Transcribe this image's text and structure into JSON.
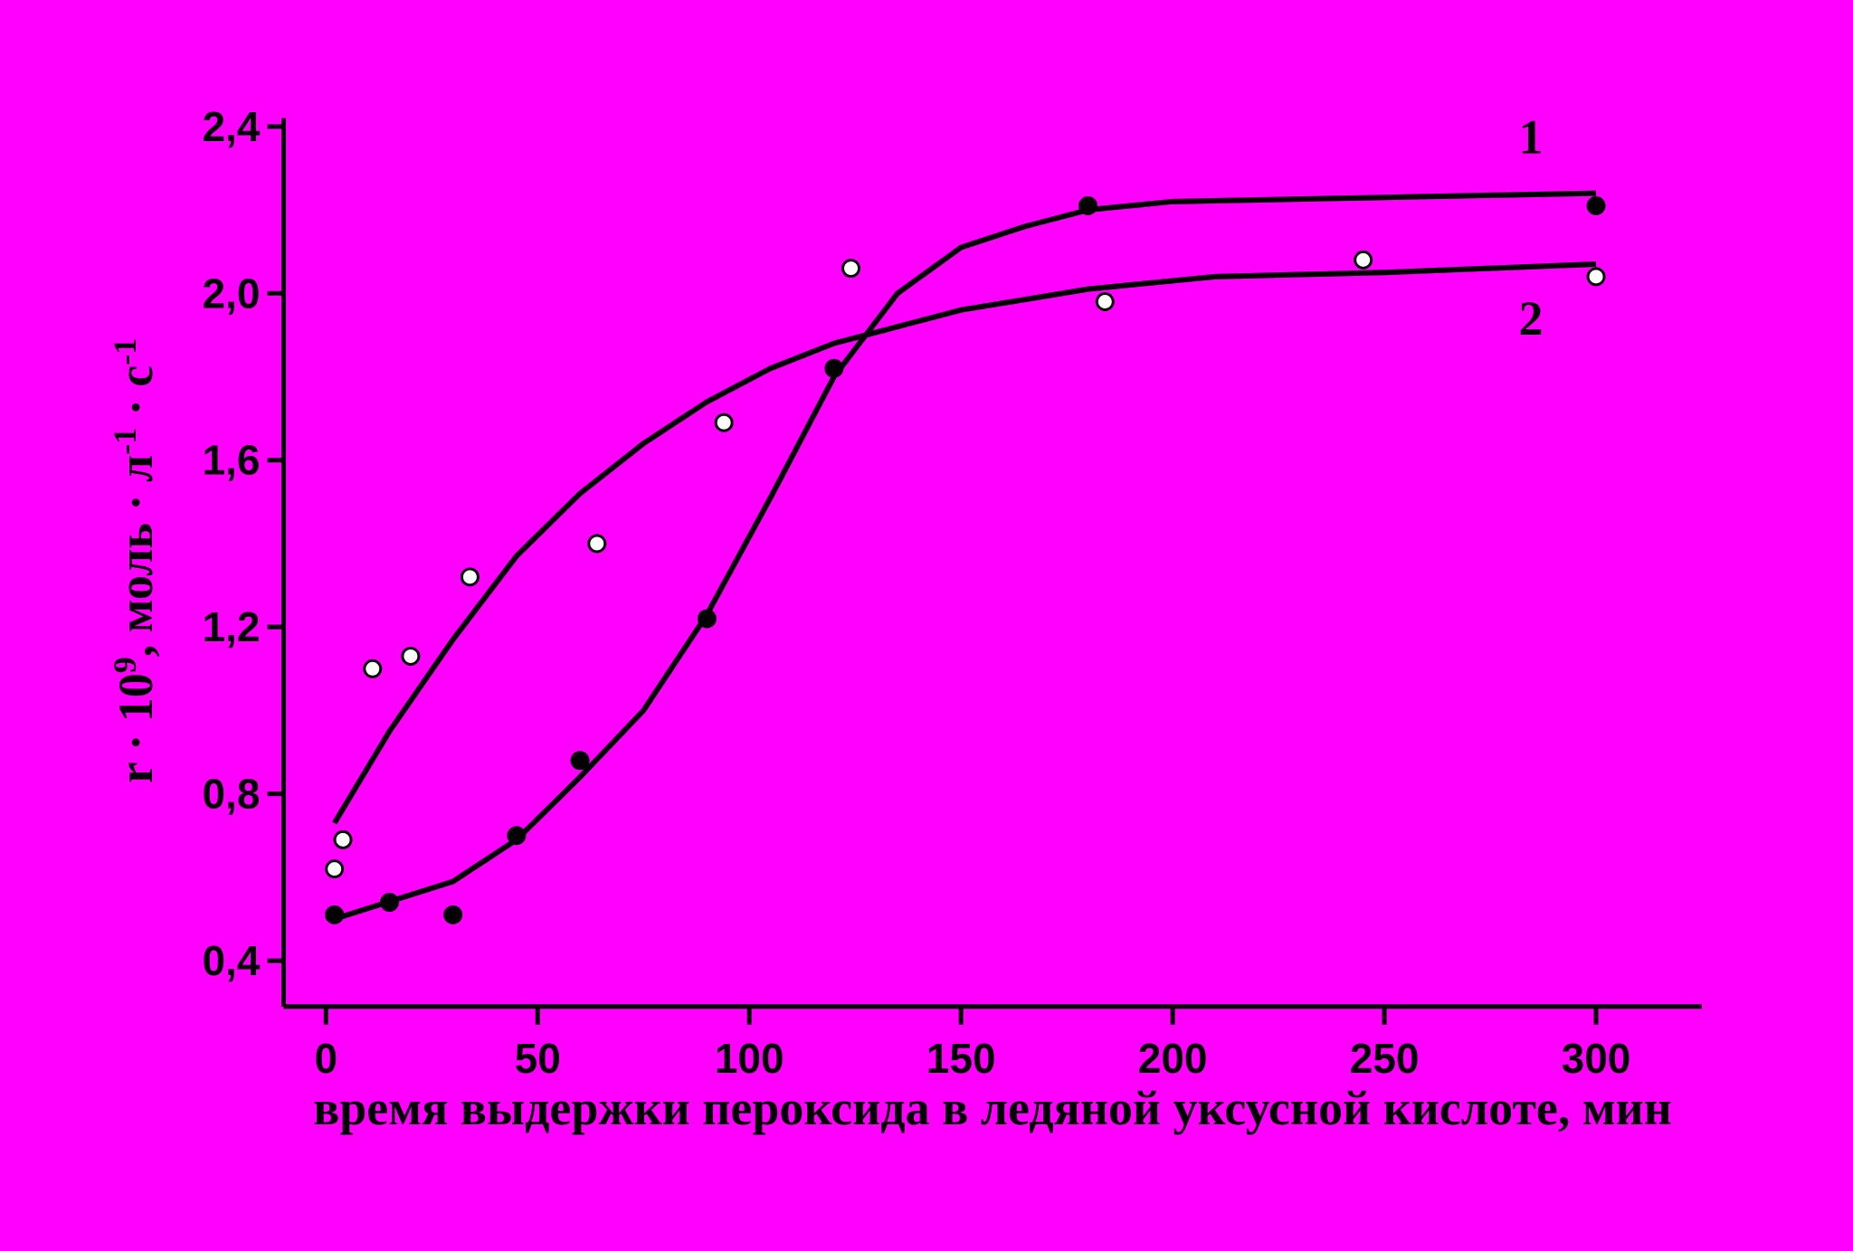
{
  "chart_data": {
    "type": "scatter",
    "xlabel": "время выдержки пероксида в ледяной уксусной кислоте, мин",
    "ylabel": [
      {
        "text": "r · 10",
        "sup": "9"
      },
      {
        "text": ", моль · л",
        "sup": "-1"
      },
      {
        "text": " · с",
        "sup": "-1"
      }
    ],
    "xlim": [
      -10,
      325
    ],
    "ylim": [
      0.29,
      2.42
    ],
    "xticks": [
      0,
      50,
      100,
      150,
      200,
      250,
      300
    ],
    "yticks": [
      {
        "value": 0.4,
        "label": "0,4"
      },
      {
        "value": 0.8,
        "label": "0,8"
      },
      {
        "value": 1.2,
        "label": "1,2"
      },
      {
        "value": 1.6,
        "label": "1,6"
      },
      {
        "value": 2.0,
        "label": "2,0"
      },
      {
        "value": 2.4,
        "label": "2,4"
      }
    ],
    "background": "#ff00ff",
    "series": [
      {
        "marker": "filled",
        "color": "#000000",
        "x": [
          2,
          15,
          30,
          45,
          60,
          90,
          120,
          180,
          300
        ],
        "values": [
          0.51,
          0.54,
          0.51,
          0.7,
          0.88,
          1.22,
          1.82,
          2.21,
          2.21
        ]
      },
      {
        "marker": "open",
        "color": "#000000",
        "x": [
          2,
          4,
          11,
          20,
          34,
          64,
          94,
          124,
          184,
          245,
          300
        ],
        "values": [
          0.62,
          0.69,
          1.1,
          1.13,
          1.32,
          1.4,
          1.69,
          2.06,
          1.98,
          2.08,
          2.04
        ]
      }
    ],
    "fits": [
      {
        "name": "1",
        "color": "#000000",
        "x": [
          2,
          30,
          45,
          60,
          75,
          90,
          105,
          120,
          135,
          150,
          165,
          180,
          200,
          250,
          300
        ],
        "values": [
          0.5,
          0.59,
          0.69,
          0.84,
          1.0,
          1.23,
          1.51,
          1.8,
          2.0,
          2.11,
          2.16,
          2.2,
          2.22,
          2.23,
          2.24
        ]
      },
      {
        "name": "2",
        "color": "#000000",
        "x": [
          2,
          15,
          30,
          45,
          60,
          75,
          90,
          105,
          120,
          135,
          150,
          180,
          210,
          250,
          300
        ],
        "values": [
          0.73,
          0.95,
          1.17,
          1.37,
          1.52,
          1.64,
          1.74,
          1.82,
          1.88,
          1.92,
          1.96,
          2.01,
          2.04,
          2.05,
          2.07
        ]
      }
    ]
  }
}
